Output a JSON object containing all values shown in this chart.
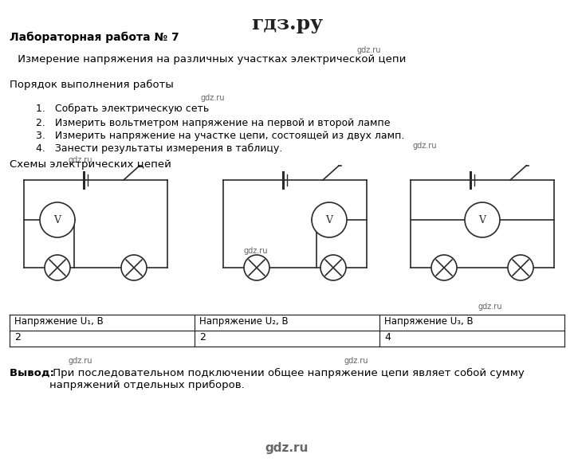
{
  "title": "гдз.ру",
  "header": "Лабораторная работа № 7",
  "subtitle": " Измерение напряжения на различных участках электрической цепи",
  "section1": "Порядок выполнения работы",
  "items": [
    "Собрать электрическую сеть",
    "Измерить вольтметром напряжение на первой и второй лампе",
    "Измерить напряжение на участке цепи, состоящей из двух ламп.",
    "Занести результаты измерения в таблицу."
  ],
  "section2": "Схемы электрических цепей",
  "table_headers": [
    "Напряжение U₁, В",
    "Напряжение U₂, В",
    "Напряжение U₃, В"
  ],
  "table_values": [
    "2",
    "2",
    "4"
  ],
  "conclusion_label": "Вывод: ",
  "conclusion_text": " При последовательном подключении общее напряжение цепи являет собой сумму\nнапряжений отдельных приборов.",
  "gdz_ru_color": "#666666",
  "bg_color": "#ffffff",
  "line_color": "#2a2a2a"
}
